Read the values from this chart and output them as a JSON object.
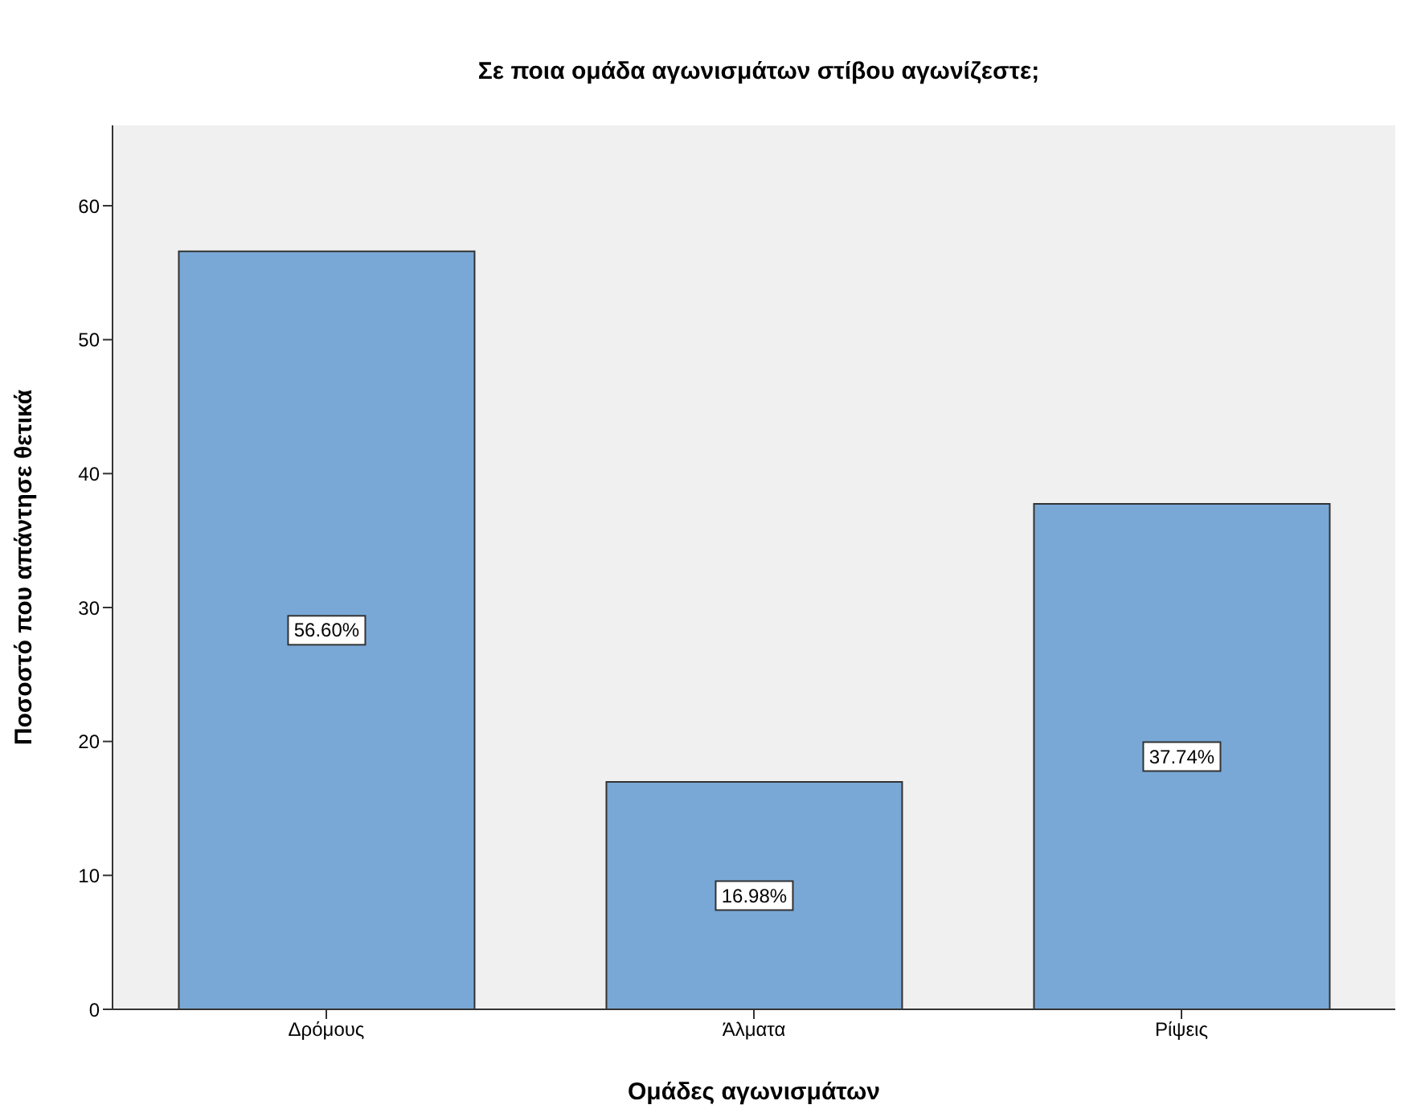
{
  "chart_data": {
    "type": "bar",
    "title": "Σε ποια ομάδα αγωνισμάτων στίβου αγωνίζεστε;",
    "xlabel": "Ομάδες αγωνισμάτων",
    "ylabel": "Ποσοστό που απάντησε θετικά",
    "categories": [
      "Δρόμους",
      "Άλματα",
      "Ρίψεις"
    ],
    "values": [
      56.6,
      16.98,
      37.74
    ],
    "value_labels": [
      "56.60%",
      "16.98%",
      "37.74%"
    ],
    "color": "#79a8d6",
    "ylim": [
      0,
      66
    ],
    "yticks": [
      0,
      10,
      20,
      30,
      40,
      50,
      60
    ],
    "grid": false
  }
}
